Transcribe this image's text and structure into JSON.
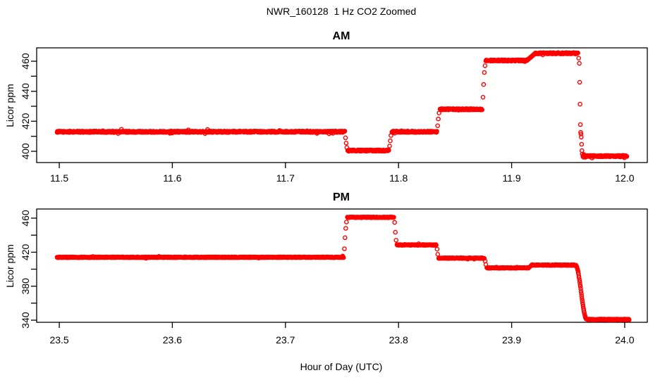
{
  "figure": {
    "title": "NWR_160128  1 Hz CO2 Zoomed",
    "xlabel": "Hour of Day (UTC)",
    "background": "#FFFFFF",
    "text_color": "#000000"
  },
  "chart_data": [
    {
      "type": "scatter",
      "panel": "AM",
      "title": "AM",
      "ylabel": "Licor ppm",
      "marker": "open-circle",
      "color": "#FF0000",
      "sample_rate_hz": 1,
      "grid": false,
      "xlim": [
        11.48,
        12.02
      ],
      "ylim": [
        392.5,
        468.9
      ],
      "xticks": [
        {
          "v": 11.5,
          "label": "11.5"
        },
        {
          "v": 11.6,
          "label": "11.6"
        },
        {
          "v": 11.7,
          "label": "11.7"
        },
        {
          "v": 11.8,
          "label": "11.8"
        },
        {
          "v": 11.9,
          "label": "11.9"
        },
        {
          "v": 12.0,
          "label": "12.0"
        }
      ],
      "yticks": [
        {
          "v": 400,
          "label": "400"
        },
        {
          "v": 420,
          "label": "420"
        },
        {
          "v": 440,
          "label": "440"
        },
        {
          "v": 460,
          "label": "460"
        }
      ],
      "yticks_minor": [
        410,
        430,
        450
      ],
      "segments": [
        {
          "shape": "flat",
          "t0": 11.498,
          "t1": 11.7525,
          "v": 413.0
        },
        {
          "shape": "points",
          "pts": [
            [
              11.7531,
              409.0
            ],
            [
              11.7537,
              405.5
            ],
            [
              11.7543,
              402.5
            ]
          ]
        },
        {
          "shape": "flat",
          "t0": 11.755,
          "t1": 11.7915,
          "v": 400.5
        },
        {
          "shape": "points",
          "pts": [
            [
              11.7921,
              403.5
            ],
            [
              11.7927,
              407.0
            ],
            [
              11.7933,
              410.5
            ]
          ]
        },
        {
          "shape": "flat",
          "t0": 11.794,
          "t1": 11.834,
          "v": 413.0
        },
        {
          "shape": "points",
          "pts": [
            [
              11.8346,
              417.0
            ],
            [
              11.8352,
              421.5
            ],
            [
              11.8358,
              425.5
            ]
          ]
        },
        {
          "shape": "flat",
          "t0": 11.8365,
          "t1": 11.874,
          "v": 428.0
        },
        {
          "shape": "points",
          "pts": [
            [
              11.8747,
              436.0
            ],
            [
              11.8753,
              444.5
            ],
            [
              11.8759,
              452.5
            ],
            [
              11.8765,
              457.0
            ]
          ]
        },
        {
          "shape": "flat",
          "t0": 11.877,
          "t1": 11.9135,
          "v": 460.5
        },
        {
          "shape": "ramp",
          "t0": 11.9135,
          "t1": 11.921,
          "v0": 460.5,
          "v1": 465.3
        },
        {
          "shape": "flat",
          "t0": 11.921,
          "t1": 11.9587,
          "v": 465.3
        },
        {
          "shape": "points",
          "pts": [
            [
              11.9593,
              462.0
            ],
            [
              11.9599,
              458.6
            ],
            [
              11.9602,
              446.0
            ],
            [
              11.9605,
              431.4
            ],
            [
              11.9608,
              417.8
            ],
            [
              11.9611,
              412.6
            ],
            [
              11.9613,
              411.5
            ],
            [
              11.9616,
              409.4
            ],
            [
              11.9619,
              404.7
            ],
            [
              11.9622,
              400.4
            ],
            [
              11.9625,
              398.2
            ]
          ]
        },
        {
          "shape": "flat",
          "t0": 11.9628,
          "t1": 12.002,
          "v": 396.8
        }
      ]
    },
    {
      "type": "scatter",
      "panel": "PM",
      "title": "PM",
      "ylabel": "Licor ppm",
      "marker": "open-circle",
      "color": "#FF0000",
      "sample_rate_hz": 1,
      "grid": false,
      "xlim": [
        23.48,
        24.02
      ],
      "ylim": [
        337.5,
        470.8
      ],
      "xticks": [
        {
          "v": 23.5,
          "label": "23.5"
        },
        {
          "v": 23.6,
          "label": "23.6"
        },
        {
          "v": 23.7,
          "label": "23.7"
        },
        {
          "v": 23.8,
          "label": "23.8"
        },
        {
          "v": 23.9,
          "label": "23.9"
        },
        {
          "v": 24.0,
          "label": "24.0"
        }
      ],
      "yticks": [
        {
          "v": 340,
          "label": "340"
        },
        {
          "v": 380,
          "label": "380"
        },
        {
          "v": 420,
          "label": "420"
        },
        {
          "v": 460,
          "label": "460"
        }
      ],
      "yticks_minor": [
        360,
        400,
        440
      ],
      "segments": [
        {
          "shape": "flat",
          "t0": 23.498,
          "t1": 23.7515,
          "v": 414.0
        },
        {
          "shape": "points",
          "pts": [
            [
              23.7521,
              424.0
            ],
            [
              23.7527,
              437.0
            ],
            [
              23.7533,
              448.0
            ],
            [
              23.7539,
              455.5
            ]
          ]
        },
        {
          "shape": "flat",
          "t0": 23.7545,
          "t1": 23.796,
          "v": 461.0
        },
        {
          "shape": "points",
          "pts": [
            [
              23.7966,
              455.0
            ],
            [
              23.7972,
              443.5
            ],
            [
              23.7978,
              434.0
            ]
          ]
        },
        {
          "shape": "flat",
          "t0": 23.7985,
          "t1": 23.8335,
          "v": 428.5
        },
        {
          "shape": "points",
          "pts": [
            [
              23.8341,
              423.5
            ],
            [
              23.8347,
              417.5
            ]
          ]
        },
        {
          "shape": "flat",
          "t0": 23.8355,
          "t1": 23.876,
          "v": 413.0
        },
        {
          "shape": "points",
          "pts": [
            [
              23.8766,
              409.5
            ],
            [
              23.8772,
              405.5
            ]
          ]
        },
        {
          "shape": "flat",
          "t0": 23.878,
          "t1": 23.9155,
          "v": 401.5
        },
        {
          "shape": "points",
          "pts": [
            [
              23.9163,
              403.0
            ]
          ]
        },
        {
          "shape": "flat",
          "t0": 23.9175,
          "t1": 23.9565,
          "v": 404.8
        },
        {
          "shape": "scurve",
          "t0": 23.9565,
          "t1": 23.9665,
          "v0": 404.8,
          "v1": 341.0
        },
        {
          "shape": "flat",
          "t0": 23.9665,
          "t1": 24.004,
          "v": 340.8
        }
      ]
    }
  ]
}
